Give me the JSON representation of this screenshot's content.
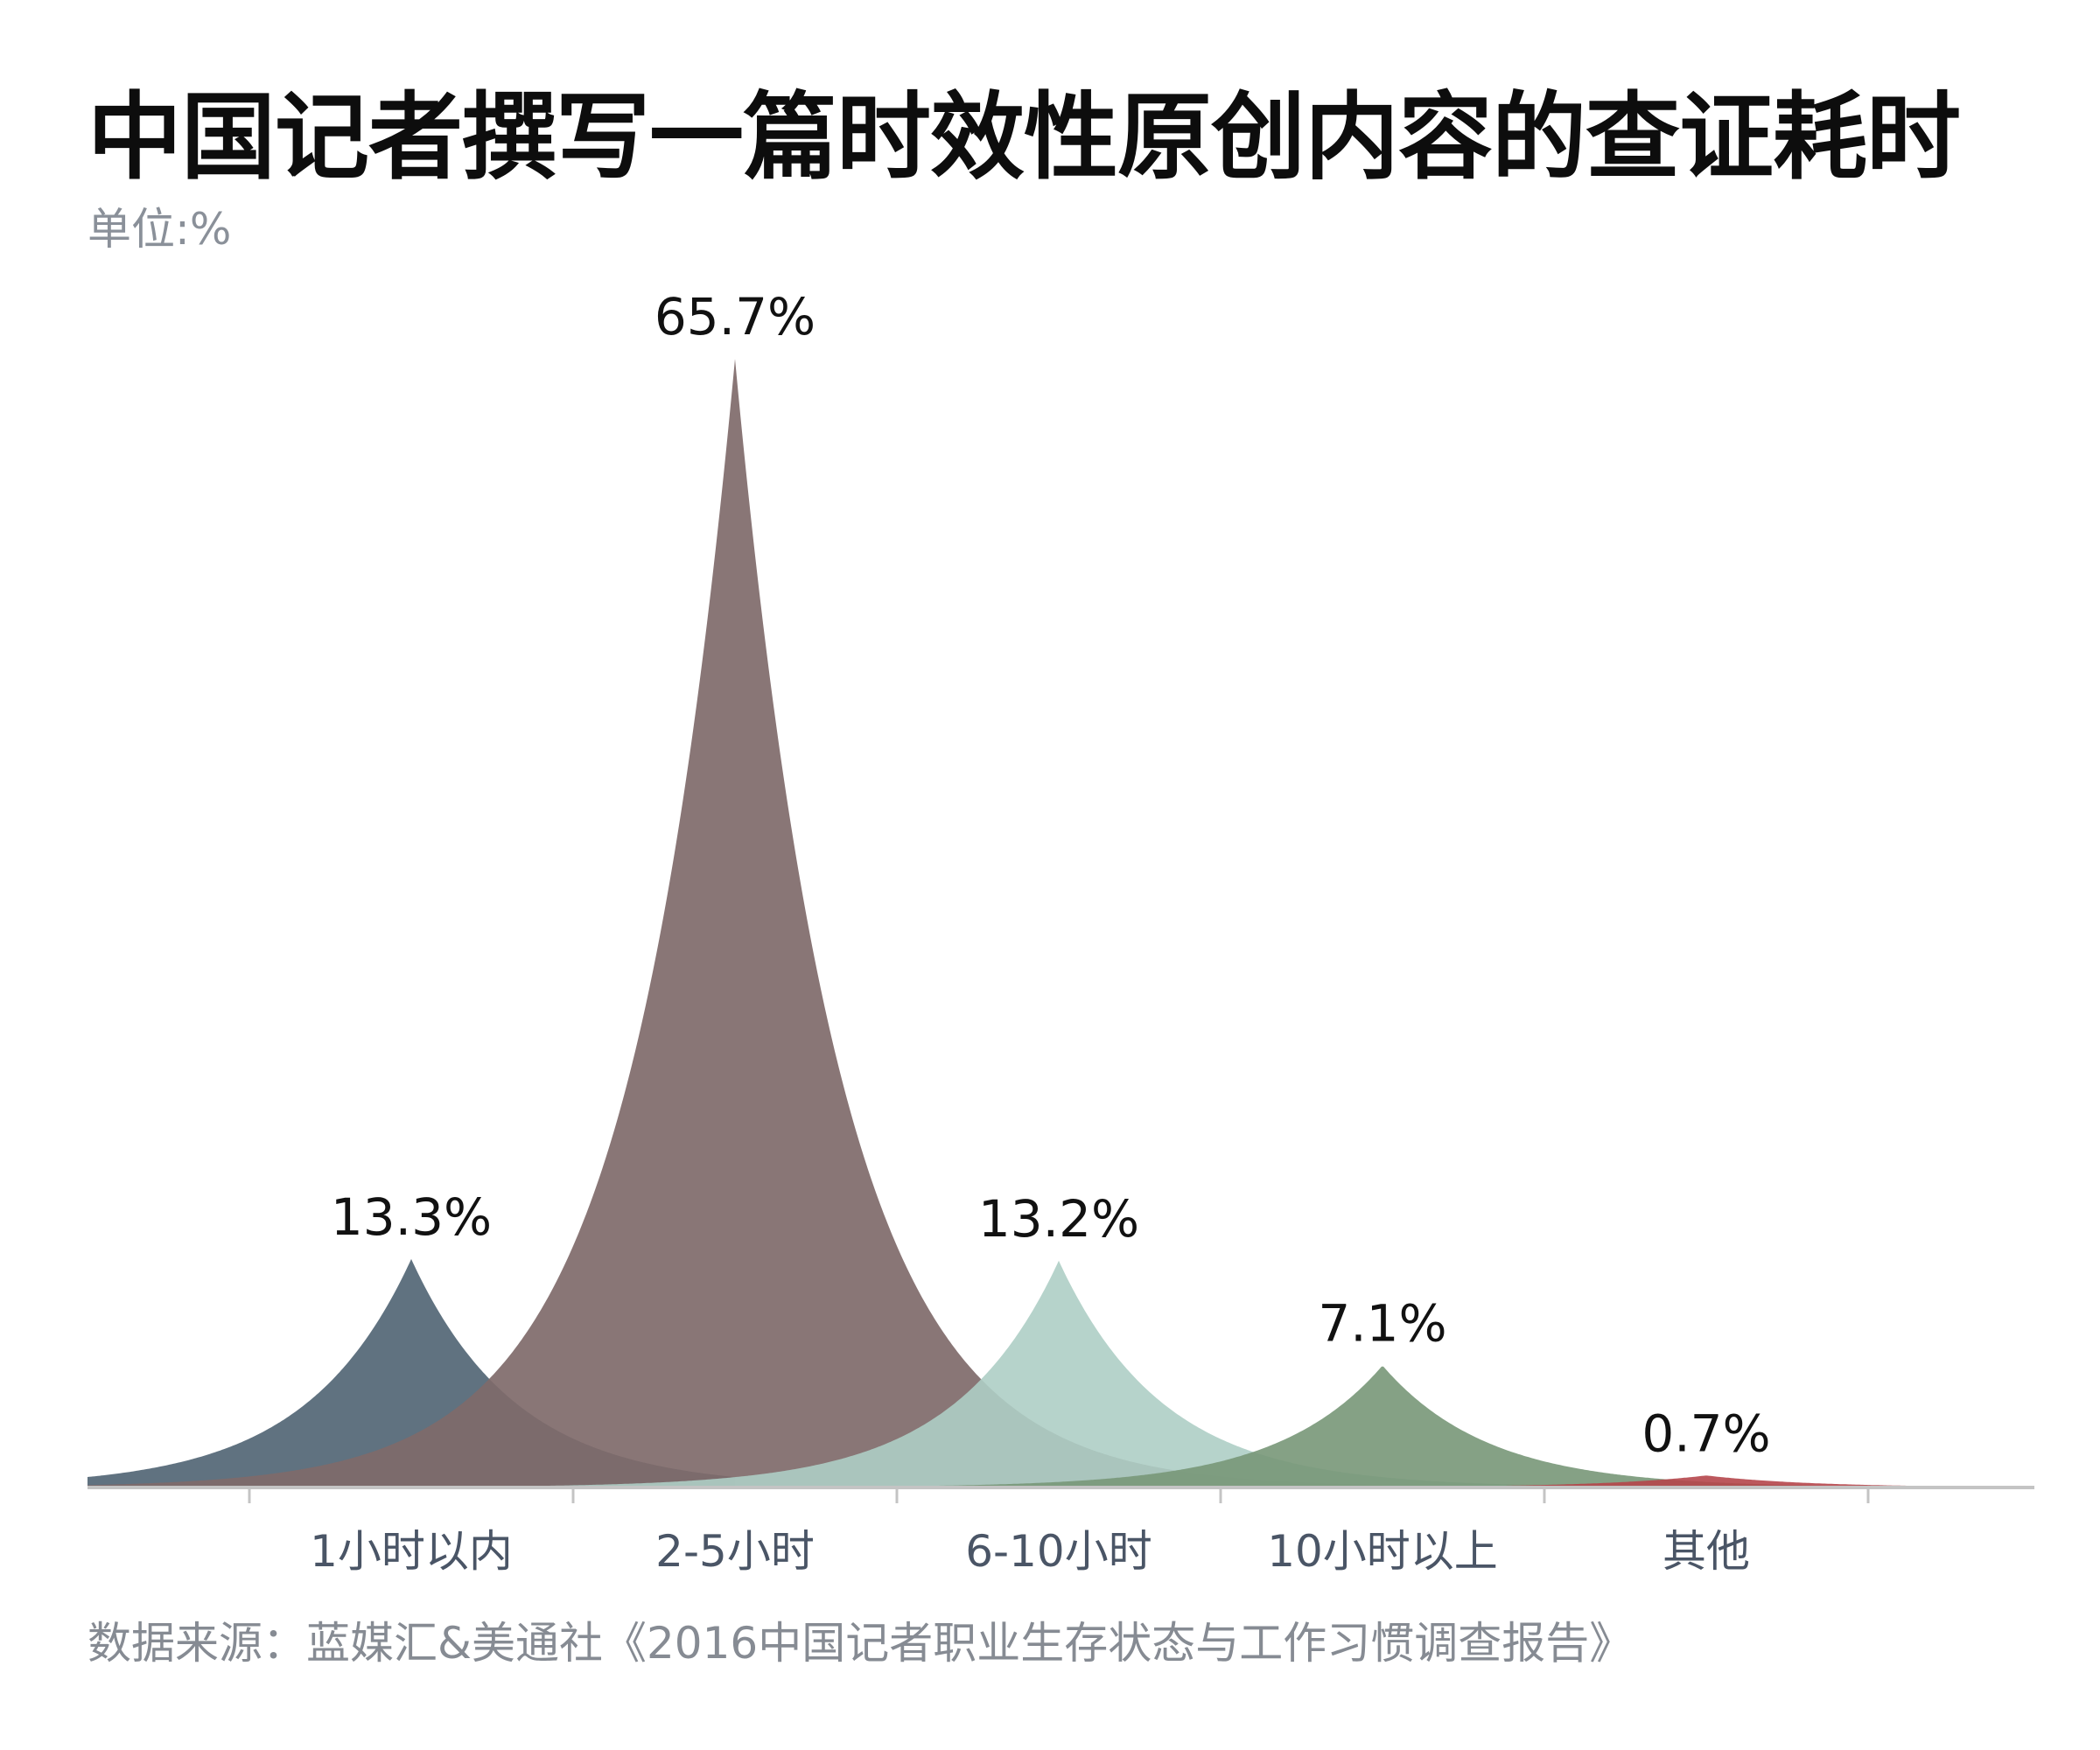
{
  "chart_data": {
    "type": "area",
    "title": "中国记者撰写一篇时效性原创内容的查证耗时",
    "unit_label": "单位:%",
    "categories": [
      "1小时以内",
      "2-5小时",
      "6-10小时",
      "10小时以上",
      "其他"
    ],
    "values": [
      13.3,
      65.7,
      13.2,
      7.1,
      0.7
    ],
    "value_labels": [
      "13.3%",
      "65.7%",
      "13.2%",
      "7.1%",
      "0.7%"
    ],
    "colors": [
      "#4f6372",
      "#7f6a6a",
      "#aecec5",
      "#789778",
      "#b5464b"
    ],
    "ylim": [
      0,
      70
    ],
    "grid": false,
    "legend": "none",
    "source": "数据来源：蓝媒汇&美通社《2016中国记者职业生存状态与工作习惯调查报告》"
  }
}
